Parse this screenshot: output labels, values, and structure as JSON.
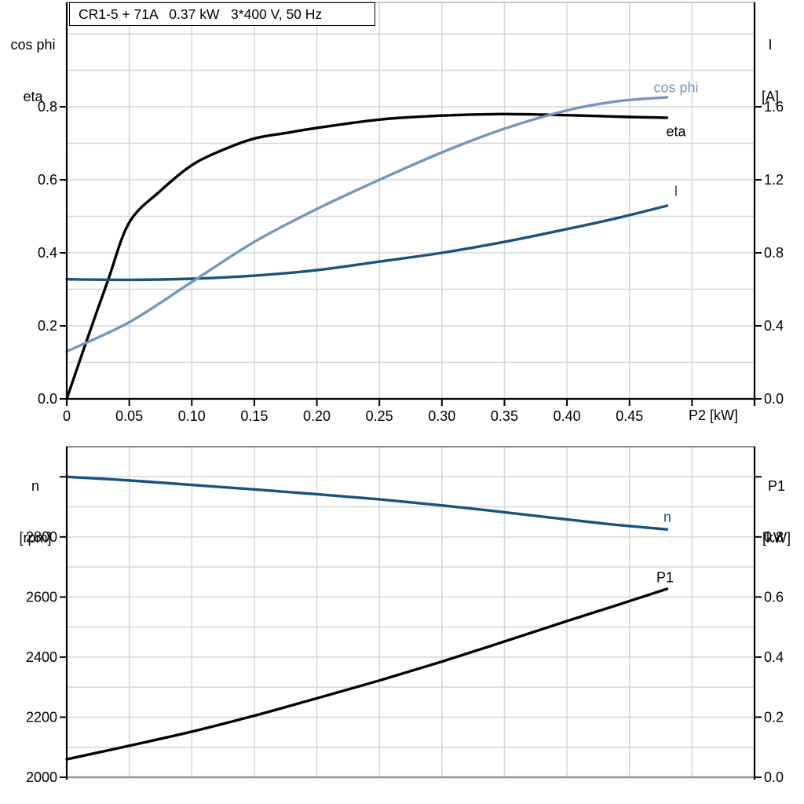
{
  "title": "CR1-5 + 71A   0.37 kW   3*400 V, 50 Hz",
  "axis_labels": {
    "top_left": [
      "cos phi",
      "eta"
    ],
    "top_right": [
      "I",
      "[A]"
    ],
    "bottom_left": [
      "n",
      "[rpm]"
    ],
    "bottom_right": [
      "P1",
      "[kW]"
    ],
    "x_unit": "P2 [kW]"
  },
  "colors": {
    "black": "#000000",
    "steel_blue": "#7496bd",
    "dark_blue": "#18527f",
    "grid": "#d3d7da",
    "frame_gray": "#8e9092",
    "top_border": "#c4c9cd"
  },
  "chart_data": [
    {
      "type": "line",
      "title": "CR1-5 + 71A 0.37 kW 3*400 V, 50 Hz",
      "xlabel": "P2 [kW]",
      "ylabel_left": "cos phi / eta",
      "ylabel_right": "I [A]",
      "xlim": [
        0,
        0.55
      ],
      "ylim_left": [
        0,
        1.086
      ],
      "ylim_right": [
        0,
        2.172
      ],
      "xgrid_step": 0.05,
      "ygrid_step_left": 0.1,
      "legend_position": "inline-right",
      "grid": true,
      "xticks": {
        "values": [
          0,
          0.05,
          0.1,
          0.15,
          0.2,
          0.25,
          0.3,
          0.35,
          0.4,
          0.45,
          0.5
        ],
        "labels": [
          "0",
          "0.05",
          "0.10",
          "0.15",
          "0.20",
          "0.25",
          "0.30",
          "0.35",
          "0.40",
          "0.45",
          ""
        ]
      },
      "yticks_left": {
        "values": [
          0,
          0.2,
          0.4,
          0.6,
          0.8
        ],
        "labels": [
          "0.0",
          "0.2",
          "0.4",
          "0.6",
          "0.8"
        ]
      },
      "yticks_right": {
        "values": [
          0,
          0.4,
          0.8,
          1.2,
          1.6
        ],
        "labels": [
          "0.0",
          "0.4",
          "0.8",
          "1.2",
          "1.6"
        ]
      },
      "series": [
        {
          "name": "eta",
          "label": "eta",
          "axis": "left",
          "color_key": "black",
          "points": [
            [
              0,
              0
            ],
            [
              0.016,
              0.16
            ],
            [
              0.033,
              0.325
            ],
            [
              0.05,
              0.483
            ],
            [
              0.075,
              0.57
            ],
            [
              0.1,
              0.64
            ],
            [
              0.125,
              0.682
            ],
            [
              0.15,
              0.713
            ],
            [
              0.175,
              0.728
            ],
            [
              0.2,
              0.742
            ],
            [
              0.25,
              0.765
            ],
            [
              0.3,
              0.776
            ],
            [
              0.35,
              0.78
            ],
            [
              0.4,
              0.777
            ],
            [
              0.45,
              0.772
            ],
            [
              0.48,
              0.77
            ]
          ]
        },
        {
          "name": "current",
          "label": "I",
          "axis": "right",
          "color_key": "dark_blue",
          "points": [
            [
              0,
              0.655
            ],
            [
              0.05,
              0.652
            ],
            [
              0.1,
              0.658
            ],
            [
              0.15,
              0.675
            ],
            [
              0.2,
              0.705
            ],
            [
              0.25,
              0.752
            ],
            [
              0.3,
              0.8
            ],
            [
              0.35,
              0.86
            ],
            [
              0.4,
              0.93
            ],
            [
              0.44,
              0.99
            ],
            [
              0.48,
              1.058
            ]
          ]
        },
        {
          "name": "cos-phi",
          "label": "cos phi",
          "axis": "left",
          "color_key": "steel_blue",
          "points": [
            [
              0,
              0.13
            ],
            [
              0.05,
              0.21
            ],
            [
              0.1,
              0.32
            ],
            [
              0.15,
              0.43
            ],
            [
              0.2,
              0.52
            ],
            [
              0.25,
              0.6
            ],
            [
              0.3,
              0.675
            ],
            [
              0.35,
              0.74
            ],
            [
              0.4,
              0.79
            ],
            [
              0.44,
              0.815
            ],
            [
              0.48,
              0.826
            ]
          ]
        }
      ]
    },
    {
      "type": "line",
      "title": "",
      "xlabel": "P2 [kW]",
      "ylabel_left": "n [rpm]",
      "ylabel_right": "P1 [kW]",
      "xlim": [
        0,
        0.55
      ],
      "ylim_left": [
        2000,
        3100
      ],
      "ylim_right": [
        0,
        1.1
      ],
      "xgrid_step": 0.05,
      "ygrid_step_left": 100,
      "legend_position": "inline-right",
      "grid": true,
      "xticks": {
        "values": [],
        "labels": []
      },
      "yticks_left": {
        "values": [
          2000,
          2200,
          2400,
          2600,
          2800,
          3000
        ],
        "labels": [
          "2000",
          "2200",
          "2400",
          "2600",
          "2800",
          ""
        ]
      },
      "yticks_right": {
        "values": [
          0,
          0.2,
          0.4,
          0.6,
          0.8,
          1.0
        ],
        "labels": [
          "0.0",
          "0.2",
          "0.4",
          "0.6",
          "0.8",
          ""
        ]
      },
      "series": [
        {
          "name": "speed",
          "label": "n",
          "axis": "left",
          "color_key": "dark_blue",
          "points": [
            [
              0,
              3000
            ],
            [
              0.05,
              2988
            ],
            [
              0.1,
              2973
            ],
            [
              0.15,
              2958
            ],
            [
              0.2,
              2942
            ],
            [
              0.25,
              2925
            ],
            [
              0.3,
              2905
            ],
            [
              0.35,
              2882
            ],
            [
              0.4,
              2858
            ],
            [
              0.44,
              2840
            ],
            [
              0.48,
              2825
            ]
          ]
        },
        {
          "name": "input-power",
          "label": "P1",
          "axis": "right",
          "color_key": "black",
          "points": [
            [
              0,
              0.06
            ],
            [
              0.05,
              0.105
            ],
            [
              0.1,
              0.152
            ],
            [
              0.15,
              0.205
            ],
            [
              0.2,
              0.263
            ],
            [
              0.25,
              0.322
            ],
            [
              0.3,
              0.385
            ],
            [
              0.35,
              0.452
            ],
            [
              0.4,
              0.52
            ],
            [
              0.44,
              0.573
            ],
            [
              0.48,
              0.627
            ]
          ]
        }
      ]
    }
  ]
}
